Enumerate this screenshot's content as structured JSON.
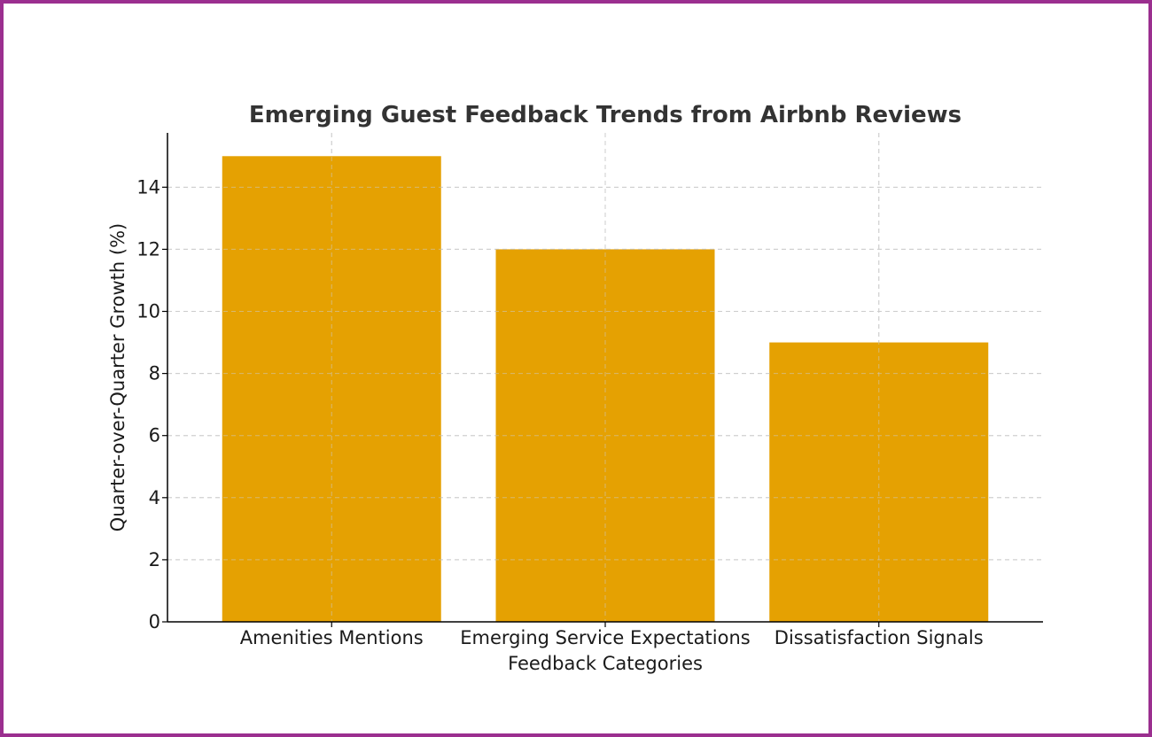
{
  "chart_data": {
    "type": "bar",
    "title": "Emerging Guest Feedback Trends from Airbnb Reviews",
    "xlabel": "Feedback Categories",
    "ylabel": "Quarter-over-Quarter Growth (%)",
    "categories": [
      "Amenities Mentions",
      "Emerging Service Expectations",
      "Dissatisfaction Signals"
    ],
    "values": [
      15,
      12,
      9
    ],
    "ylim": [
      0,
      15.75
    ],
    "yticks": [
      0,
      2,
      4,
      6,
      8,
      10,
      12,
      14
    ],
    "grid": true,
    "bar_color": "#e5a102",
    "border_color": "#9b2f8f"
  }
}
